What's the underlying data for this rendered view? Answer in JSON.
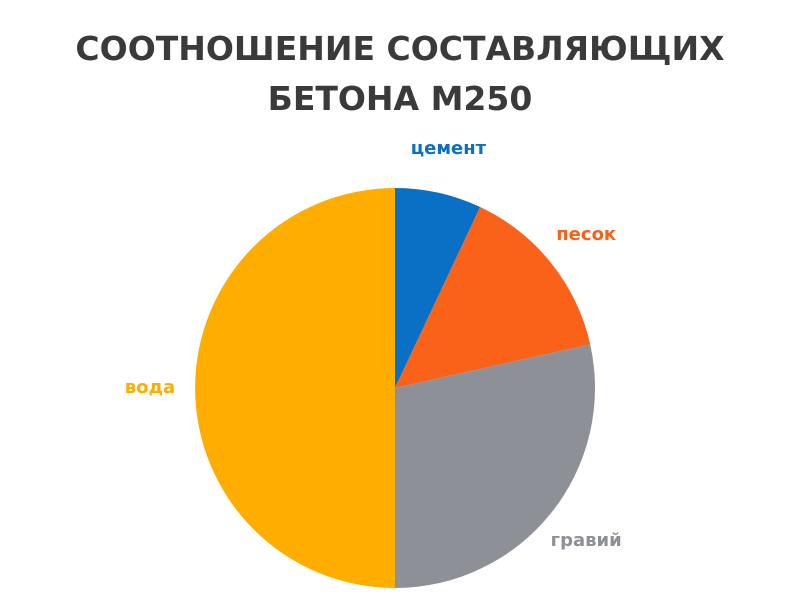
{
  "chart_data": {
    "type": "pie",
    "title": "СООТНОШЕНИЕ СОСТАВЛЯЮЩИХ БЕТОНА M250",
    "categories": [
      "цемент",
      "песок",
      "гравий",
      "вода"
    ],
    "values": [
      7,
      14.5,
      28.5,
      50
    ],
    "colors": [
      "#0a70c6",
      "#f96218",
      "#8e9097",
      "#ffae00"
    ]
  }
}
